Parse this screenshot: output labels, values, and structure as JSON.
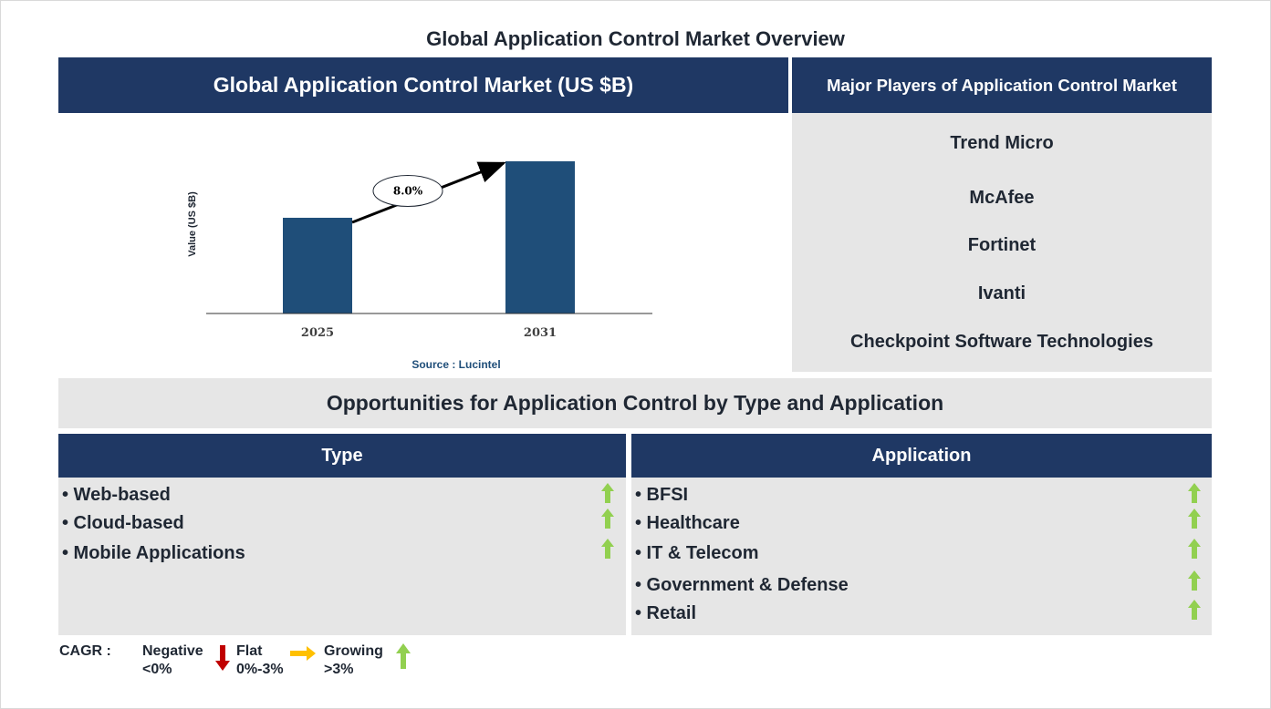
{
  "title": "Global Application Control Market Overview",
  "market_panel": {
    "header": "Global Application Control Market (US $B)",
    "source": "Source : Lucintel"
  },
  "chart_data": {
    "type": "bar",
    "categories": [
      "2025",
      "2031"
    ],
    "values": [
      1.0,
      1.59
    ],
    "ylabel": "Value (US $B)",
    "xlabel": "",
    "cagr_label": "8.0%",
    "bar_color": "#1f4e79"
  },
  "players": {
    "header": "Major Players of Application Control Market",
    "items": [
      "Trend Micro",
      "McAfee",
      "Fortinet",
      "Ivanti",
      "Checkpoint Software Technologies"
    ]
  },
  "opportunities": {
    "title": "Opportunities for Application Control by Type and Application",
    "type": {
      "header": "Type",
      "items": [
        {
          "label": "• Web-based",
          "trend": "growing"
        },
        {
          "label": "• Cloud-based",
          "trend": "growing"
        },
        {
          "label": "• Mobile Applications",
          "trend": "growing"
        }
      ]
    },
    "application": {
      "header": "Application",
      "items": [
        {
          "label": "• BFSI",
          "trend": "growing"
        },
        {
          "label": "• Healthcare",
          "trend": "growing"
        },
        {
          "label": "• IT & Telecom",
          "trend": "growing"
        },
        {
          "label": "• Government & Defense",
          "trend": "growing"
        },
        {
          "label": "• Retail",
          "trend": "growing"
        }
      ]
    }
  },
  "legend": {
    "cagr_label": "CAGR  :",
    "negative": {
      "label": "Negative",
      "range": "<0%",
      "icon": "red-down-arrow-icon"
    },
    "flat": {
      "label": "Flat",
      "range": "0%-3%",
      "icon": "yellow-right-arrow-icon"
    },
    "growing": {
      "label": "Growing",
      "range": ">3%",
      "icon": "green-up-arrow-icon"
    }
  },
  "colors": {
    "navy": "#1f3864",
    "panel_grey": "#e6e6e6",
    "green": "#92d050",
    "red": "#c00000",
    "yellow": "#ffc000",
    "source_blue": "#1f4e79"
  }
}
